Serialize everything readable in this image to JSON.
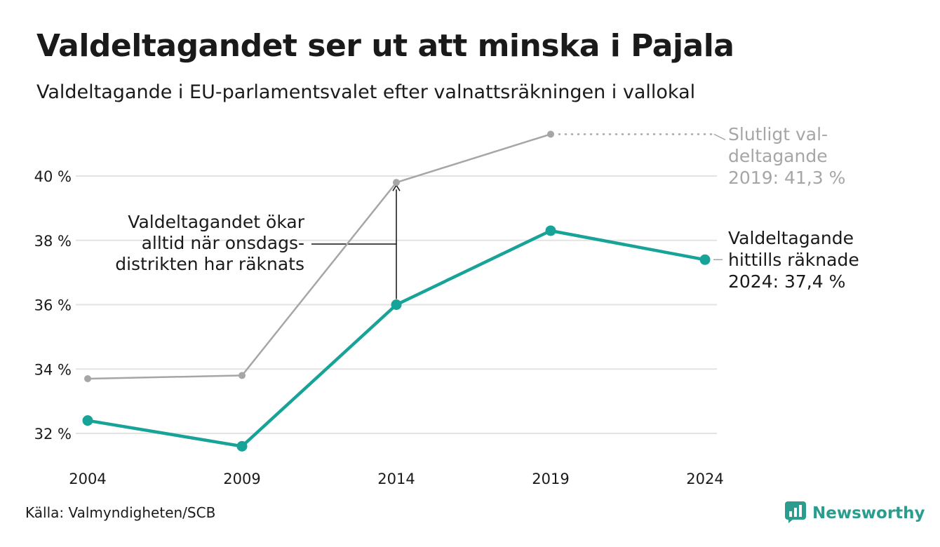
{
  "title": "Valdeltagandet ser ut att minska i Pajala",
  "subtitle": "Valdeltagande i EU-parlamentsvalet efter valnattsräkningen i vallokal",
  "source": "Källa: Valmyndigheten/SCB",
  "brand": {
    "name": "Newsworthy",
    "icon": "chart-logo-icon",
    "color": "#2a9d8f"
  },
  "colors": {
    "final": "#a6a6a6",
    "counted": "#17a398",
    "grid": "#e3e3e3",
    "text": "#1a1a1a"
  },
  "chart_data": {
    "type": "line",
    "title": "Valdeltagandet ser ut att minska i Pajala",
    "subtitle": "Valdeltagande i EU-parlamentsvalet efter valnattsräkningen i vallokal",
    "x": [
      2004,
      2009,
      2014,
      2019,
      2024
    ],
    "x_tick_labels": [
      "2004",
      "2009",
      "2014",
      "2019",
      "2024"
    ],
    "y_ticks": [
      32,
      34,
      36,
      38,
      40
    ],
    "y_tick_labels": [
      "32 %",
      "34 %",
      "36 %",
      "38 %",
      "40 %"
    ],
    "ylim": [
      31.2,
      41.6
    ],
    "grid": true,
    "series": [
      {
        "key": "final",
        "values": [
          33.7,
          33.8,
          39.8,
          41.3,
          null
        ]
      },
      {
        "key": "counted",
        "values": [
          32.4,
          31.6,
          36.0,
          38.3,
          37.4
        ]
      }
    ],
    "annotations": {
      "final_label": [
        "Slutligt val-",
        "deltagande",
        "2019: 41,3 %"
      ],
      "counted_label": [
        "Valdeltagande",
        "hittills räknade",
        "2024: 37,4 %"
      ],
      "arrow_label": [
        "Valdeltagandet ökar",
        "alltid när onsdags-",
        "distrikten har räknats"
      ]
    }
  }
}
